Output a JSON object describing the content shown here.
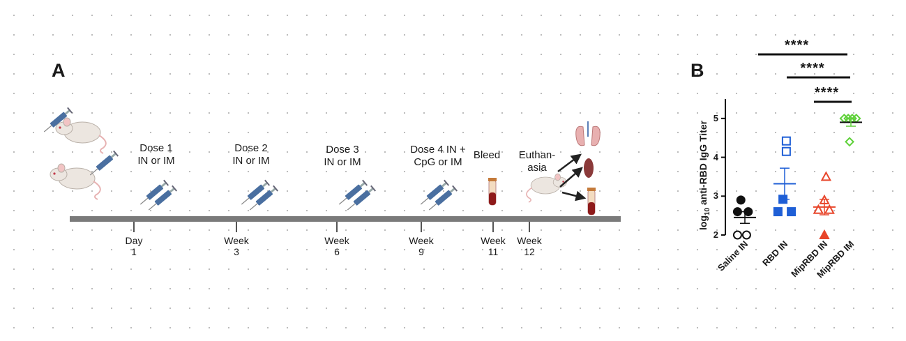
{
  "panel_a": {
    "letter": "A",
    "steps": [
      {
        "label": "Dose 1\nIN or IM",
        "tick": "Day\n1"
      },
      {
        "label": "Dose 2\nIN or IM",
        "tick": "Week\n3"
      },
      {
        "label": "Dose 3\nIN or IM",
        "tick": "Week\n6"
      },
      {
        "label": "Dose 4 IN +\nCpG or IM",
        "tick": "Week\n9"
      },
      {
        "label": "Bleed",
        "tick": "Week\n11"
      },
      {
        "label": "Euthan-\nasia",
        "tick": "Week\n12"
      }
    ],
    "colors": {
      "timeline": "#7a7a7a",
      "mouse": "#ece6e0",
      "syringe": "#4a6fa0",
      "organ": "#8b3a3a"
    }
  },
  "panel_b": {
    "letter": "B",
    "significance": [
      "****",
      "****",
      "****"
    ]
  },
  "chart_data": {
    "type": "scatter",
    "ylabel_prefix": "log",
    "ylabel_sub": "10",
    "ylabel_suffix": " anti-RBD IgG Titer",
    "ylim": [
      2,
      5.5
    ],
    "yticks": [
      "2",
      "3",
      "4",
      "5"
    ],
    "categories": [
      "Saline IN",
      "RBD IN",
      "MipRBD IN",
      "MipRBD IM"
    ],
    "series": [
      {
        "color": "#111111",
        "points": [
          [
            -0.12,
            2.9
          ],
          [
            -0.22,
            2.6
          ],
          [
            0.1,
            2.6
          ],
          [
            -0.22,
            2.0
          ],
          [
            0.05,
            2.0
          ]
        ],
        "filled": [
          true,
          true,
          true,
          false,
          false
        ],
        "mean": 2.45,
        "sem": 0.15
      },
      {
        "color": "#1f5fd6",
        "points": [
          [
            0.05,
            4.42
          ],
          [
            0.05,
            4.15
          ],
          [
            -0.05,
            2.92
          ],
          [
            -0.2,
            2.6
          ],
          [
            0.2,
            2.6
          ]
        ],
        "filled": [
          false,
          false,
          true,
          true,
          true
        ],
        "mean": 3.32,
        "sem": 0.4
      },
      {
        "color": "#e8452a",
        "points": [
          [
            0.05,
            3.5
          ],
          [
            0.0,
            2.9
          ],
          [
            -0.18,
            2.65
          ],
          [
            0.15,
            2.65
          ],
          [
            0.0,
            2.0
          ]
        ],
        "filled": [
          false,
          false,
          false,
          false,
          true
        ],
        "mean": 2.72,
        "sem": 0.2
      },
      {
        "color": "#5fd13a",
        "points": [
          [
            -0.2,
            5.0
          ],
          [
            -0.08,
            5.0
          ],
          [
            0.04,
            5.0
          ],
          [
            0.16,
            5.0
          ],
          [
            -0.04,
            4.4
          ]
        ],
        "filled": [
          false,
          false,
          false,
          false,
          false
        ],
        "mean": 4.9,
        "sem": 0.1
      }
    ]
  }
}
